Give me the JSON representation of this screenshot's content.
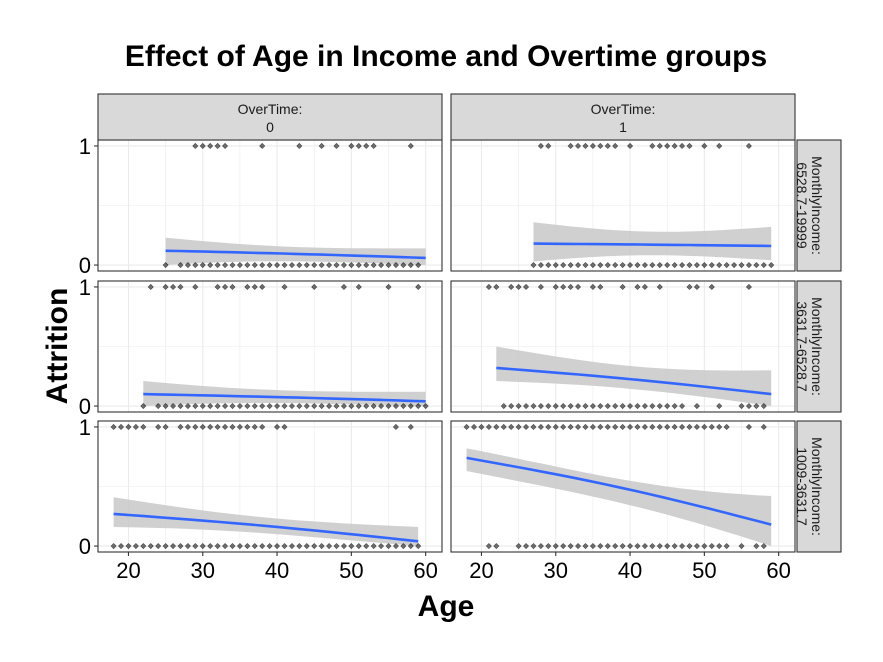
{
  "chart_data": {
    "type": "scatter",
    "title": "Effect of Age in Income and Overtime groups",
    "xlabel": "Age",
    "ylabel": "Attrition",
    "x_ticks": [
      20,
      30,
      40,
      50,
      60
    ],
    "y_ticks": [
      0,
      1
    ],
    "xlim": [
      15.9,
      62.2
    ],
    "ylim": [
      -0.05,
      1.05
    ],
    "col_facet": {
      "label": "OverTime:",
      "levels": [
        "0",
        "1"
      ]
    },
    "row_facet": {
      "label": "MonthlyIncome:",
      "levels": [
        "6528.7-19999",
        "3631.7-6528.7",
        "1009-3631.7"
      ]
    },
    "colors": {
      "points": "#000000",
      "smooth_line": "#3366FF",
      "ribbon": "#C8C8C8",
      "strip_fill": "#D9D9D9",
      "grid": "#EBEBEB"
    },
    "panels": [
      {
        "overtime": "0",
        "income": "6528.7-19999",
        "points_y1": [
          29,
          30,
          31,
          32,
          33,
          38,
          43,
          46,
          48,
          50,
          51,
          52,
          53,
          58
        ],
        "points_y0": [
          25,
          27,
          28,
          29,
          30,
          31,
          32,
          33,
          34,
          35,
          36,
          37,
          38,
          39,
          40,
          41,
          42,
          43,
          44,
          45,
          46,
          47,
          48,
          49,
          50,
          51,
          52,
          53,
          54,
          55,
          56,
          57,
          58,
          59
        ],
        "fit_x": [
          25,
          60
        ],
        "fit_y": [
          0.12,
          0.06
        ],
        "lower": [
          0.0,
          0.0
        ],
        "upper": [
          0.23,
          0.14
        ]
      },
      {
        "overtime": "1",
        "income": "6528.7-19999",
        "points_y1": [
          28,
          29,
          32,
          33,
          34,
          35,
          36,
          37,
          38,
          40,
          43,
          44,
          45,
          46,
          47,
          48,
          50,
          52,
          56
        ],
        "points_y0": [
          27,
          28,
          29,
          30,
          31,
          32,
          33,
          34,
          35,
          36,
          37,
          38,
          39,
          40,
          41,
          42,
          43,
          44,
          45,
          46,
          47,
          48,
          49,
          50,
          51,
          52,
          53,
          54,
          55,
          56,
          57,
          58,
          59
        ],
        "fit_x": [
          27,
          59
        ],
        "fit_y": [
          0.18,
          0.16
        ],
        "lower": [
          0.03,
          0.04
        ],
        "upper": [
          0.36,
          0.32
        ]
      },
      {
        "overtime": "0",
        "income": "3631.7-6528.7",
        "points_y1": [
          23,
          25,
          26,
          27,
          29,
          32,
          33,
          34,
          36,
          37,
          38,
          41,
          45,
          49,
          51,
          55,
          59
        ],
        "points_y0": [
          22,
          24,
          25,
          26,
          27,
          28,
          29,
          30,
          31,
          32,
          33,
          34,
          35,
          36,
          37,
          38,
          39,
          40,
          41,
          42,
          43,
          44,
          45,
          46,
          47,
          48,
          49,
          50,
          51,
          52,
          53,
          54,
          55,
          56,
          57,
          58,
          59,
          60
        ],
        "fit_x": [
          22,
          60
        ],
        "fit_y": [
          0.1,
          0.04
        ],
        "lower": [
          0.0,
          0.0
        ],
        "upper": [
          0.21,
          0.12
        ]
      },
      {
        "overtime": "1",
        "income": "3631.7-6528.7",
        "points_y1": [
          21,
          22,
          24,
          25,
          26,
          28,
          30,
          31,
          32,
          33,
          35,
          36,
          39,
          41,
          42,
          44,
          48,
          49,
          51,
          56
        ],
        "points_y0": [
          23,
          24,
          25,
          26,
          27,
          28,
          29,
          30,
          31,
          32,
          33,
          34,
          35,
          36,
          37,
          38,
          39,
          40,
          41,
          42,
          43,
          44,
          45,
          46,
          47,
          49,
          52,
          55,
          56,
          57,
          58
        ],
        "fit_x": [
          22,
          59
        ],
        "fit_y": [
          0.32,
          0.1
        ],
        "lower": [
          0.21,
          0.0
        ],
        "upper": [
          0.5,
          0.3
        ]
      },
      {
        "overtime": "0",
        "income": "1009-3631.7",
        "points_y1": [
          18,
          19,
          20,
          21,
          22,
          24,
          25,
          27,
          28,
          29,
          30,
          31,
          32,
          33,
          34,
          35,
          36,
          37,
          38,
          40,
          41,
          56,
          58
        ],
        "points_y0": [
          18,
          19,
          20,
          21,
          22,
          23,
          24,
          25,
          26,
          27,
          28,
          29,
          30,
          31,
          32,
          33,
          34,
          35,
          36,
          37,
          38,
          39,
          40,
          41,
          42,
          43,
          44,
          45,
          46,
          47,
          48,
          49,
          50,
          51,
          52,
          53,
          54,
          55,
          56,
          57,
          58,
          59
        ],
        "fit_x": [
          18,
          59
        ],
        "fit_y": [
          0.27,
          0.04
        ],
        "lower": [
          0.16,
          0.0
        ],
        "upper": [
          0.41,
          0.16
        ]
      },
      {
        "overtime": "1",
        "income": "1009-3631.7",
        "points_y1": [
          18,
          19,
          20,
          21,
          22,
          23,
          24,
          25,
          26,
          27,
          28,
          29,
          30,
          31,
          32,
          33,
          34,
          35,
          36,
          37,
          38,
          39,
          40,
          41,
          42,
          43,
          44,
          45,
          46,
          47,
          48,
          49,
          50,
          51,
          52,
          53,
          56,
          58
        ],
        "points_y0": [
          21,
          22,
          25,
          26,
          27,
          28,
          29,
          30,
          31,
          32,
          33,
          34,
          35,
          36,
          37,
          38,
          39,
          40,
          41,
          42,
          43,
          44,
          45,
          46,
          47,
          48,
          49,
          50,
          51,
          52,
          53,
          55,
          57,
          58
        ],
        "fit_x": [
          18,
          59
        ],
        "fit_y": [
          0.74,
          0.18
        ],
        "lower": [
          0.63,
          0.0
        ],
        "upper": [
          0.82,
          0.42
        ]
      }
    ]
  }
}
